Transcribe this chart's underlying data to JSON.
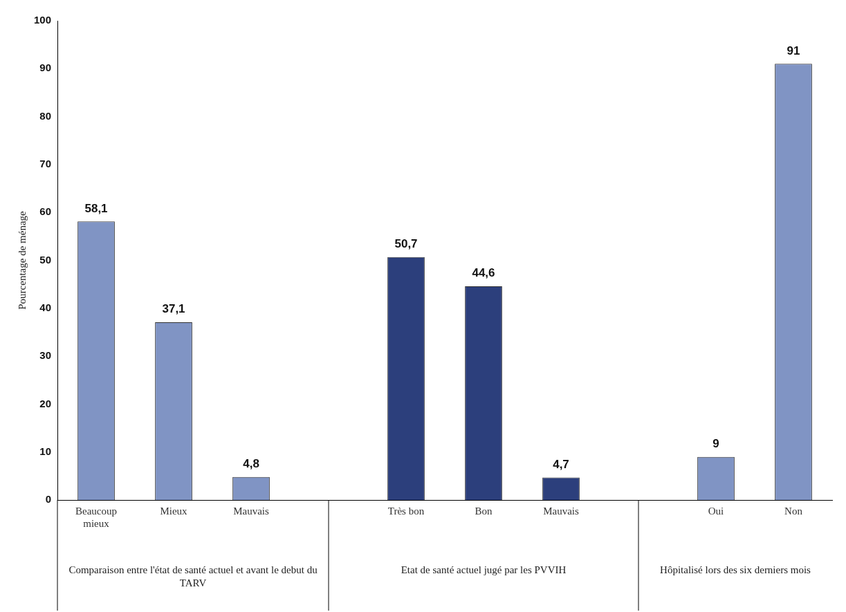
{
  "chart_data": {
    "type": "bar",
    "ylabel": "Pourcentage de ménage",
    "categories": [
      "Beaucoup mieux",
      "Mieux",
      "Mauvais",
      null,
      "Très bon",
      "Bon",
      "Mauvais",
      null,
      "Oui",
      "Non"
    ],
    "values": [
      58.1,
      37.1,
      4.8,
      null,
      50.7,
      44.6,
      4.7,
      null,
      9,
      91
    ],
    "colors": [
      "#8094c4",
      "#8094c4",
      "#8094c4",
      "#8094c4",
      "#2c3f7c",
      "#2c3f7c",
      "#2c3f7c",
      "#8094c4",
      "#8094c4",
      "#8094c4"
    ],
    "value_labels": [
      "58,1",
      "37,1",
      "4,8",
      null,
      "50,7",
      "44,6",
      "4,7",
      null,
      "9",
      "91"
    ],
    "ylim": [
      0,
      100
    ],
    "yticks": [
      0,
      10,
      20,
      30,
      40,
      50,
      60,
      70,
      80,
      90,
      100
    ],
    "grid": false,
    "legend": false,
    "annotations": [
      "Comparaison entre l'état de santé actuel et  avant le debut du TARV",
      "Etat de santé actuel jugé par les PVVIH",
      "Hôpitalisé lors des six derniers mois"
    ]
  }
}
